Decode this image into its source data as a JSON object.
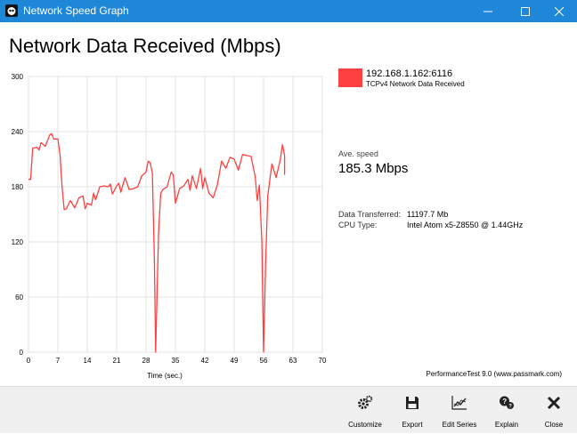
{
  "window": {
    "title": "Network Speed Graph",
    "accent": "#1f87d8"
  },
  "heading": "Network Data Received (Mbps)",
  "legend": {
    "name": "192.168.1.162:6116",
    "description": "TCPv4 Network Data Received",
    "color": "#ff4040"
  },
  "stats": {
    "avg_label": "Ave. speed",
    "avg_value": "185.3 Mbps",
    "data_transferred_label": "Data Transferred:",
    "data_transferred_value": "11197.7 Mb",
    "cpu_label": "CPU Type:",
    "cpu_value": "Intel Atom x5-Z8550 @ 1.44GHz"
  },
  "credit": "PerformanceTest 9.0 (www.passmark.com)",
  "toolbar": {
    "customize": "Customize",
    "export": "Export",
    "edit_series": "Edit Series",
    "explain": "Explain",
    "close": "Close"
  },
  "chart_data": {
    "type": "line",
    "xlabel": "Time (sec.)",
    "ylabel": "",
    "xlim": [
      0,
      70
    ],
    "ylim": [
      0,
      300
    ],
    "xticks": [
      0,
      7,
      14,
      21,
      28,
      35,
      42,
      49,
      56,
      63,
      70
    ],
    "yticks": [
      0,
      60,
      120,
      180,
      240,
      300
    ],
    "grid": true,
    "series": [
      {
        "name": "192.168.1.162:6116",
        "color": "#ff4040",
        "points": [
          [
            0,
            188
          ],
          [
            0.5,
            188
          ],
          [
            1,
            222
          ],
          [
            2,
            223
          ],
          [
            2.5,
            220
          ],
          [
            3,
            228
          ],
          [
            4,
            224
          ],
          [
            5,
            236
          ],
          [
            5.5,
            238
          ],
          [
            6,
            232
          ],
          [
            7,
            232
          ],
          [
            7.5,
            215
          ],
          [
            8,
            180
          ],
          [
            8.5,
            155
          ],
          [
            9,
            156
          ],
          [
            10,
            165
          ],
          [
            11,
            157
          ],
          [
            12,
            168
          ],
          [
            13,
            170
          ],
          [
            13.5,
            156
          ],
          [
            14,
            162
          ],
          [
            15,
            160
          ],
          [
            15.5,
            173
          ],
          [
            16,
            166
          ],
          [
            17,
            180
          ],
          [
            18,
            181
          ],
          [
            19,
            180
          ],
          [
            19.5,
            183
          ],
          [
            20,
            172
          ],
          [
            21,
            181
          ],
          [
            21.5,
            184
          ],
          [
            22,
            174
          ],
          [
            23,
            190
          ],
          [
            24,
            177
          ],
          [
            25,
            178
          ],
          [
            26,
            180
          ],
          [
            27,
            192
          ],
          [
            28,
            196
          ],
          [
            28.5,
            208
          ],
          [
            29,
            206
          ],
          [
            29.5,
            195
          ],
          [
            30,
            100
          ],
          [
            30.3,
            0
          ],
          [
            31,
            130
          ],
          [
            31.5,
            173
          ],
          [
            32,
            177
          ],
          [
            33,
            180
          ],
          [
            34,
            196
          ],
          [
            34.5,
            193
          ],
          [
            35,
            162
          ],
          [
            36,
            178
          ],
          [
            37,
            181
          ],
          [
            38,
            188
          ],
          [
            38.5,
            176
          ],
          [
            39,
            192
          ],
          [
            40,
            178
          ],
          [
            41,
            200
          ],
          [
            41.5,
            178
          ],
          [
            42,
            190
          ],
          [
            43,
            173
          ],
          [
            44,
            168
          ],
          [
            45,
            182
          ],
          [
            46,
            208
          ],
          [
            47,
            200
          ],
          [
            48,
            212
          ],
          [
            49,
            210
          ],
          [
            50,
            198
          ],
          [
            51,
            215
          ],
          [
            52,
            214
          ],
          [
            53,
            213
          ],
          [
            54,
            191
          ],
          [
            54.5,
            165
          ],
          [
            55,
            182
          ],
          [
            55.6,
            120
          ],
          [
            56,
            0
          ],
          [
            56.5,
            100
          ],
          [
            57,
            170
          ],
          [
            58,
            205
          ],
          [
            59,
            190
          ],
          [
            60,
            210
          ],
          [
            60.5,
            226
          ],
          [
            61,
            214
          ],
          [
            61,
            193
          ]
        ]
      }
    ]
  }
}
